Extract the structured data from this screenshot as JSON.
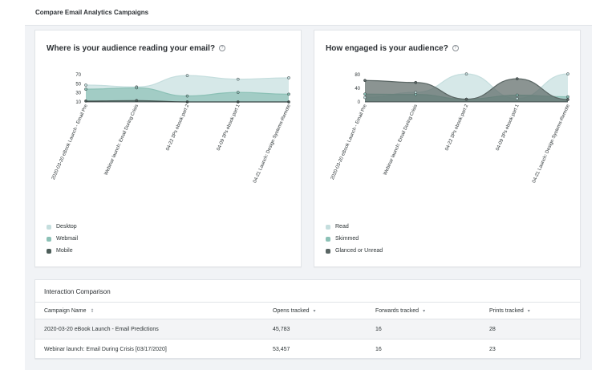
{
  "header": {
    "title": "Compare Email Analytics Campaigns"
  },
  "campaign_labels": [
    "2020-03-20 eBook Launch - Email Pre",
    "Webinar launch: Email During Crisis",
    "04-22 3Ps ebook part 2",
    "04-09 3Ps ebook part 1",
    "04-21 Launch: Design Systems-Remote"
  ],
  "chart_data": [
    {
      "type": "area",
      "title": "Where is your audience reading your email?",
      "help_icon": "question-circle-icon",
      "categories": [
        "2020-03-20 eBook Launch - Email Pre",
        "Webinar launch: Email During Crisis",
        "04-22 3Ps ebook part 2",
        "04-09 3Ps ebook part 1",
        "04-21 Launch: Design Systems-Remote"
      ],
      "yticks": [
        10,
        30,
        50,
        70
      ],
      "ylim": [
        10,
        70
      ],
      "series": [
        {
          "name": "Desktop",
          "color": "#c5dede",
          "values": [
            47,
            43,
            68,
            60,
            63
          ]
        },
        {
          "name": "Webmail",
          "color": "#8cc1b6",
          "values": [
            38,
            41,
            23,
            31,
            27
          ]
        },
        {
          "name": "Mobile",
          "color": "#4d5e5a",
          "values": [
            12,
            13,
            10,
            10,
            10
          ]
        }
      ],
      "legend_position": "bottom-left"
    },
    {
      "type": "area",
      "title": "How engaged is your audience?",
      "help_icon": "question-circle-icon",
      "categories": [
        "2020-03-20 eBook Launch - Email Pre",
        "Webinar launch: Email During Crisis",
        "04-22 3Ps ebook part 2",
        "04-09 3Ps ebook part 1",
        "04-21 Launch: Design Systems-Remote"
      ],
      "yticks": [
        0,
        40,
        80
      ],
      "ylim": [
        0,
        80
      ],
      "series": [
        {
          "name": "Read",
          "color": "#c5dede",
          "values": [
            13,
            28,
            82,
            10,
            82
          ]
        },
        {
          "name": "Skimmed",
          "color": "#8cc1b6",
          "values": [
            23,
            22,
            8,
            20,
            15
          ]
        },
        {
          "name": "Glanced or Unread",
          "color": "#5a6664",
          "values": [
            63,
            57,
            8,
            68,
            7
          ]
        }
      ],
      "legend_position": "bottom-left"
    }
  ],
  "table": {
    "title": "Interaction Comparison",
    "columns": [
      {
        "label": "Campaign Name",
        "sort_icon": "sort-icon"
      },
      {
        "label": "Opens tracked",
        "sort_icon": "sort-desc-icon"
      },
      {
        "label": "Forwards tracked",
        "sort_icon": "sort-desc-icon"
      },
      {
        "label": "Prints tracked",
        "sort_icon": "sort-desc-icon"
      }
    ],
    "rows": [
      [
        "2020-03-20 eBook Launch - Email Predictions",
        "45,783",
        "16",
        "28"
      ],
      [
        "Webinar launch: Email During Crisis [03/17/2020]",
        "53,457",
        "16",
        "23"
      ]
    ]
  }
}
